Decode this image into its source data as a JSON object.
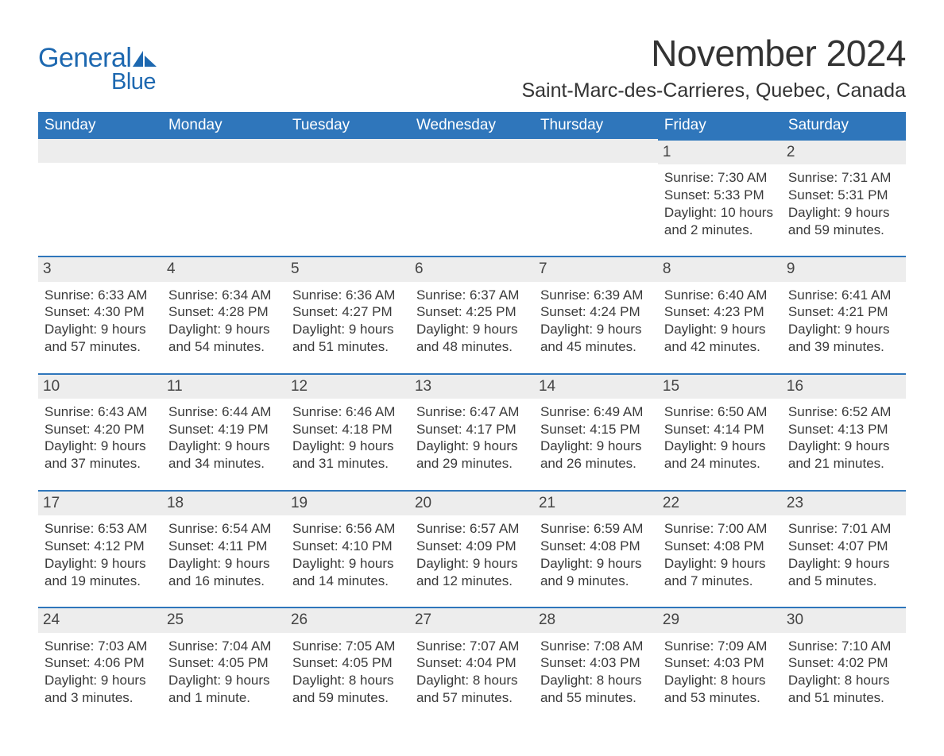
{
  "logo": {
    "word1": "General",
    "word2": "Blue",
    "brand_color": "#1d68b0"
  },
  "title": "November 2024",
  "subtitle": "Saint-Marc-des-Carrieres, Quebec, Canada",
  "colors": {
    "header_bg": "#2f76bb",
    "header_text": "#ffffff",
    "daynum_bg": "#ededed",
    "daynum_border": "#2f76bb",
    "body_text": "#3a3a3a",
    "page_bg": "#ffffff"
  },
  "weekdays": [
    "Sunday",
    "Monday",
    "Tuesday",
    "Wednesday",
    "Thursday",
    "Friday",
    "Saturday"
  ],
  "weeks": [
    [
      {
        "empty": true
      },
      {
        "empty": true
      },
      {
        "empty": true
      },
      {
        "empty": true
      },
      {
        "empty": true
      },
      {
        "day": "1",
        "sunrise": "Sunrise: 7:30 AM",
        "sunset": "Sunset: 5:33 PM",
        "daylight1": "Daylight: 10 hours",
        "daylight2": "and 2 minutes."
      },
      {
        "day": "2",
        "sunrise": "Sunrise: 7:31 AM",
        "sunset": "Sunset: 5:31 PM",
        "daylight1": "Daylight: 9 hours",
        "daylight2": "and 59 minutes."
      }
    ],
    [
      {
        "day": "3",
        "sunrise": "Sunrise: 6:33 AM",
        "sunset": "Sunset: 4:30 PM",
        "daylight1": "Daylight: 9 hours",
        "daylight2": "and 57 minutes."
      },
      {
        "day": "4",
        "sunrise": "Sunrise: 6:34 AM",
        "sunset": "Sunset: 4:28 PM",
        "daylight1": "Daylight: 9 hours",
        "daylight2": "and 54 minutes."
      },
      {
        "day": "5",
        "sunrise": "Sunrise: 6:36 AM",
        "sunset": "Sunset: 4:27 PM",
        "daylight1": "Daylight: 9 hours",
        "daylight2": "and 51 minutes."
      },
      {
        "day": "6",
        "sunrise": "Sunrise: 6:37 AM",
        "sunset": "Sunset: 4:25 PM",
        "daylight1": "Daylight: 9 hours",
        "daylight2": "and 48 minutes."
      },
      {
        "day": "7",
        "sunrise": "Sunrise: 6:39 AM",
        "sunset": "Sunset: 4:24 PM",
        "daylight1": "Daylight: 9 hours",
        "daylight2": "and 45 minutes."
      },
      {
        "day": "8",
        "sunrise": "Sunrise: 6:40 AM",
        "sunset": "Sunset: 4:23 PM",
        "daylight1": "Daylight: 9 hours",
        "daylight2": "and 42 minutes."
      },
      {
        "day": "9",
        "sunrise": "Sunrise: 6:41 AM",
        "sunset": "Sunset: 4:21 PM",
        "daylight1": "Daylight: 9 hours",
        "daylight2": "and 39 minutes."
      }
    ],
    [
      {
        "day": "10",
        "sunrise": "Sunrise: 6:43 AM",
        "sunset": "Sunset: 4:20 PM",
        "daylight1": "Daylight: 9 hours",
        "daylight2": "and 37 minutes."
      },
      {
        "day": "11",
        "sunrise": "Sunrise: 6:44 AM",
        "sunset": "Sunset: 4:19 PM",
        "daylight1": "Daylight: 9 hours",
        "daylight2": "and 34 minutes."
      },
      {
        "day": "12",
        "sunrise": "Sunrise: 6:46 AM",
        "sunset": "Sunset: 4:18 PM",
        "daylight1": "Daylight: 9 hours",
        "daylight2": "and 31 minutes."
      },
      {
        "day": "13",
        "sunrise": "Sunrise: 6:47 AM",
        "sunset": "Sunset: 4:17 PM",
        "daylight1": "Daylight: 9 hours",
        "daylight2": "and 29 minutes."
      },
      {
        "day": "14",
        "sunrise": "Sunrise: 6:49 AM",
        "sunset": "Sunset: 4:15 PM",
        "daylight1": "Daylight: 9 hours",
        "daylight2": "and 26 minutes."
      },
      {
        "day": "15",
        "sunrise": "Sunrise: 6:50 AM",
        "sunset": "Sunset: 4:14 PM",
        "daylight1": "Daylight: 9 hours",
        "daylight2": "and 24 minutes."
      },
      {
        "day": "16",
        "sunrise": "Sunrise: 6:52 AM",
        "sunset": "Sunset: 4:13 PM",
        "daylight1": "Daylight: 9 hours",
        "daylight2": "and 21 minutes."
      }
    ],
    [
      {
        "day": "17",
        "sunrise": "Sunrise: 6:53 AM",
        "sunset": "Sunset: 4:12 PM",
        "daylight1": "Daylight: 9 hours",
        "daylight2": "and 19 minutes."
      },
      {
        "day": "18",
        "sunrise": "Sunrise: 6:54 AM",
        "sunset": "Sunset: 4:11 PM",
        "daylight1": "Daylight: 9 hours",
        "daylight2": "and 16 minutes."
      },
      {
        "day": "19",
        "sunrise": "Sunrise: 6:56 AM",
        "sunset": "Sunset: 4:10 PM",
        "daylight1": "Daylight: 9 hours",
        "daylight2": "and 14 minutes."
      },
      {
        "day": "20",
        "sunrise": "Sunrise: 6:57 AM",
        "sunset": "Sunset: 4:09 PM",
        "daylight1": "Daylight: 9 hours",
        "daylight2": "and 12 minutes."
      },
      {
        "day": "21",
        "sunrise": "Sunrise: 6:59 AM",
        "sunset": "Sunset: 4:08 PM",
        "daylight1": "Daylight: 9 hours",
        "daylight2": "and 9 minutes."
      },
      {
        "day": "22",
        "sunrise": "Sunrise: 7:00 AM",
        "sunset": "Sunset: 4:08 PM",
        "daylight1": "Daylight: 9 hours",
        "daylight2": "and 7 minutes."
      },
      {
        "day": "23",
        "sunrise": "Sunrise: 7:01 AM",
        "sunset": "Sunset: 4:07 PM",
        "daylight1": "Daylight: 9 hours",
        "daylight2": "and 5 minutes."
      }
    ],
    [
      {
        "day": "24",
        "sunrise": "Sunrise: 7:03 AM",
        "sunset": "Sunset: 4:06 PM",
        "daylight1": "Daylight: 9 hours",
        "daylight2": "and 3 minutes."
      },
      {
        "day": "25",
        "sunrise": "Sunrise: 7:04 AM",
        "sunset": "Sunset: 4:05 PM",
        "daylight1": "Daylight: 9 hours",
        "daylight2": "and 1 minute."
      },
      {
        "day": "26",
        "sunrise": "Sunrise: 7:05 AM",
        "sunset": "Sunset: 4:05 PM",
        "daylight1": "Daylight: 8 hours",
        "daylight2": "and 59 minutes."
      },
      {
        "day": "27",
        "sunrise": "Sunrise: 7:07 AM",
        "sunset": "Sunset: 4:04 PM",
        "daylight1": "Daylight: 8 hours",
        "daylight2": "and 57 minutes."
      },
      {
        "day": "28",
        "sunrise": "Sunrise: 7:08 AM",
        "sunset": "Sunset: 4:03 PM",
        "daylight1": "Daylight: 8 hours",
        "daylight2": "and 55 minutes."
      },
      {
        "day": "29",
        "sunrise": "Sunrise: 7:09 AM",
        "sunset": "Sunset: 4:03 PM",
        "daylight1": "Daylight: 8 hours",
        "daylight2": "and 53 minutes."
      },
      {
        "day": "30",
        "sunrise": "Sunrise: 7:10 AM",
        "sunset": "Sunset: 4:02 PM",
        "daylight1": "Daylight: 8 hours",
        "daylight2": "and 51 minutes."
      }
    ]
  ]
}
